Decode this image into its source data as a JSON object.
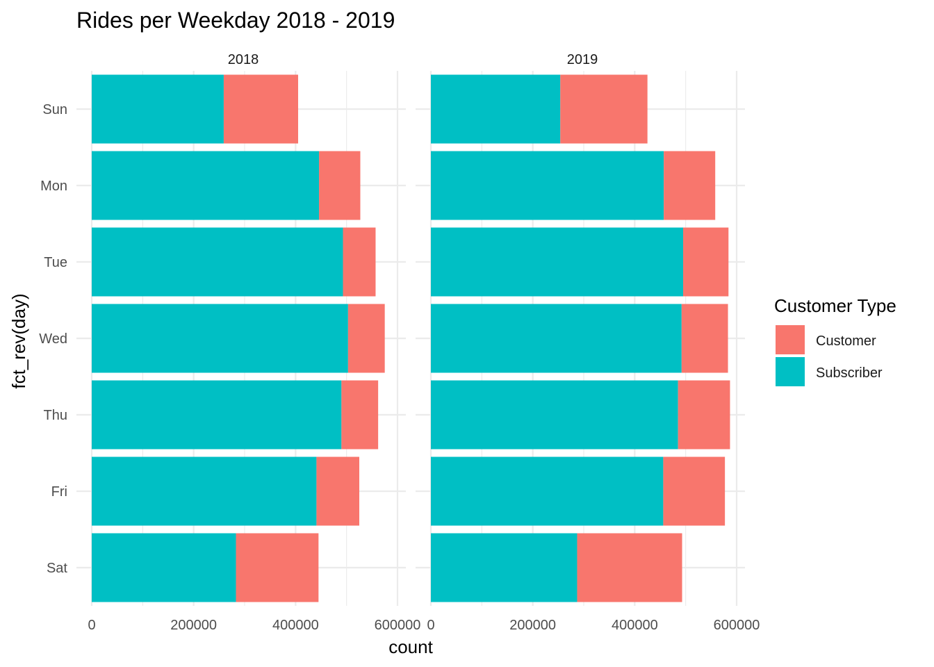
{
  "chart_data": {
    "type": "bar",
    "orientation": "horizontal",
    "stacked": true,
    "title": "Rides per Weekday 2018 - 2019",
    "xlabel": "count",
    "ylabel": "fct_rev(day)",
    "xlim": [
      0,
      600000
    ],
    "x_ticks": [
      "0",
      "200000",
      "400000",
      "600000"
    ],
    "x_tick_values": [
      0,
      200000,
      400000,
      600000
    ],
    "grid": true,
    "legend": {
      "title": "Customer Type",
      "position": "right",
      "entries": [
        {
          "name": "Customer",
          "color": "#F8766D"
        },
        {
          "name": "Subscriber",
          "color": "#00BFC4"
        }
      ]
    },
    "categories": [
      "Sun",
      "Mon",
      "Tue",
      "Wed",
      "Thu",
      "Fri",
      "Sat"
    ],
    "facets": [
      {
        "label": "2018",
        "series": [
          {
            "name": "Subscriber",
            "values": [
              259000,
              446000,
              493000,
              503000,
              490000,
              441000,
              283000
            ]
          },
          {
            "name": "Customer",
            "values": [
              146000,
              81000,
              64000,
              72000,
              72000,
              84000,
              162000
            ]
          }
        ]
      },
      {
        "label": "2019",
        "series": [
          {
            "name": "Subscriber",
            "values": [
              254000,
              457000,
              495000,
              492000,
              485000,
              456000,
              287000
            ]
          },
          {
            "name": "Customer",
            "values": [
              171000,
              101000,
              89000,
              91000,
              102000,
              121000,
              206000
            ]
          }
        ]
      }
    ]
  }
}
